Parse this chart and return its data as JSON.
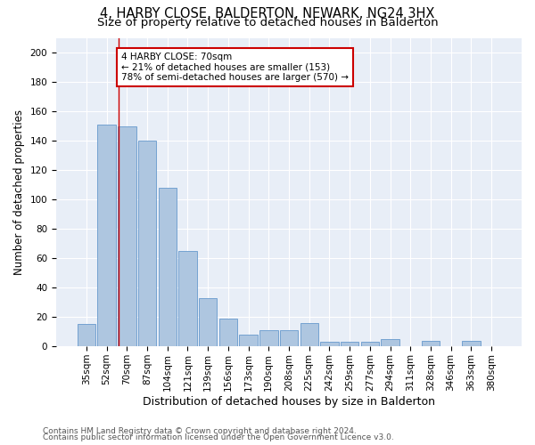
{
  "title1": "4, HARBY CLOSE, BALDERTON, NEWARK, NG24 3HX",
  "title2": "Size of property relative to detached houses in Balderton",
  "xlabel": "Distribution of detached houses by size in Balderton",
  "ylabel": "Number of detached properties",
  "categories": [
    "35sqm",
    "52sqm",
    "70sqm",
    "87sqm",
    "104sqm",
    "121sqm",
    "139sqm",
    "156sqm",
    "173sqm",
    "190sqm",
    "208sqm",
    "225sqm",
    "242sqm",
    "259sqm",
    "277sqm",
    "294sqm",
    "311sqm",
    "328sqm",
    "346sqm",
    "363sqm",
    "380sqm"
  ],
  "values": [
    15,
    151,
    150,
    140,
    108,
    65,
    33,
    19,
    8,
    11,
    11,
    16,
    3,
    3,
    3,
    5,
    0,
    4,
    0,
    4,
    0
  ],
  "bar_color": "#aec6e0",
  "bar_edge_color": "#6699cc",
  "vline_index": 1.575,
  "annotation_text": "4 HARBY CLOSE: 70sqm\n← 21% of detached houses are smaller (153)\n78% of semi-detached houses are larger (570) →",
  "annotation_box_facecolor": "#ffffff",
  "annotation_box_edgecolor": "#cc0000",
  "vline_color": "#cc0000",
  "ylim": [
    0,
    210
  ],
  "yticks": [
    0,
    20,
    40,
    60,
    80,
    100,
    120,
    140,
    160,
    180,
    200
  ],
  "footer1": "Contains HM Land Registry data © Crown copyright and database right 2024.",
  "footer2": "Contains public sector information licensed under the Open Government Licence v3.0.",
  "plot_bg_color": "#e8eef7",
  "title1_fontsize": 10.5,
  "title2_fontsize": 9.5,
  "xlabel_fontsize": 9,
  "ylabel_fontsize": 8.5,
  "tick_fontsize": 7.5,
  "annotation_fontsize": 7.5,
  "footer_fontsize": 6.5
}
